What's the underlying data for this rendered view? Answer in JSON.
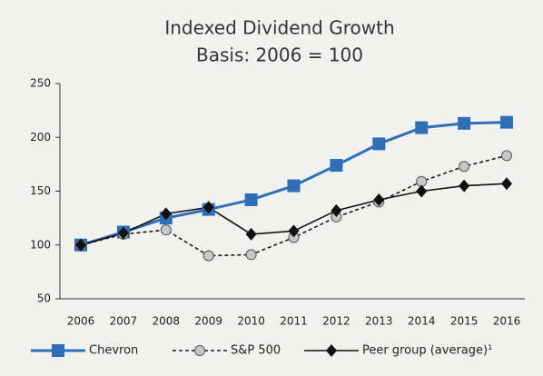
{
  "chart_data": {
    "type": "line",
    "title": "Indexed Dividend Growth",
    "subtitle": "Basis: 2006 = 100",
    "categories": [
      "2006",
      "2007",
      "2008",
      "2009",
      "2010",
      "2011",
      "2012",
      "2013",
      "2014",
      "2015",
      "2016"
    ],
    "series": [
      {
        "name": "Chevron",
        "color": "#2e6fb7",
        "marker": "square",
        "dash": false,
        "values": [
          100,
          112,
          125,
          133,
          142,
          155,
          174,
          194,
          209,
          213,
          214
        ]
      },
      {
        "name": "S&P 500",
        "color": "#1a1a1a",
        "marker": "circle",
        "dash": true,
        "values": [
          100,
          110,
          114,
          90,
          91,
          107,
          126,
          140,
          159,
          173,
          183
        ]
      },
      {
        "name": "Peer group (average)¹",
        "color": "#111111",
        "marker": "diamond",
        "dash": false,
        "values": [
          100,
          111,
          129,
          135,
          110,
          113,
          132,
          142,
          150,
          155,
          157
        ]
      }
    ],
    "ylim": [
      50,
      250
    ],
    "yticks": [
      50,
      100,
      150,
      200,
      250
    ],
    "grid": false,
    "legend": "bottom"
  }
}
